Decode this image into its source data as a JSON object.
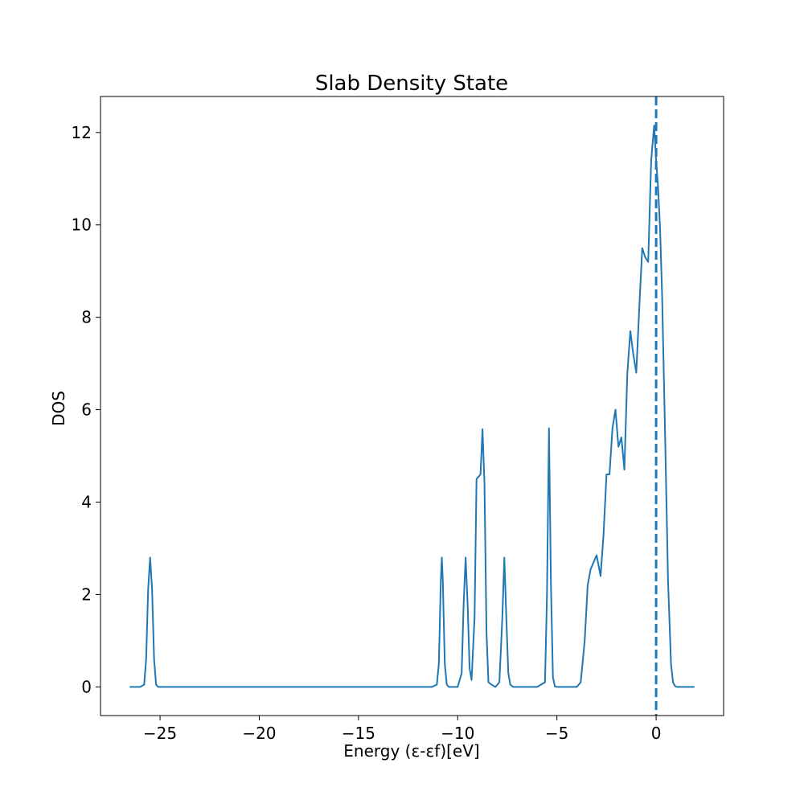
{
  "chart_data": {
    "type": "line",
    "title": "Slab Density State",
    "xlabel": "Energy (ε-εf)[eV]",
    "ylabel": "DOS",
    "xlim": [
      -28,
      3.4
    ],
    "ylim": [
      -0.62,
      12.78
    ],
    "xticks": [
      -25,
      -20,
      -15,
      -10,
      -5,
      0
    ],
    "xtick_labels": [
      "−25",
      "−20",
      "−15",
      "−10",
      "−5",
      "0"
    ],
    "yticks": [
      0,
      2,
      4,
      6,
      8,
      10,
      12
    ],
    "ytick_labels": [
      "0",
      "2",
      "4",
      "6",
      "8",
      "10",
      "12"
    ],
    "grid": false,
    "line_color": "#1f77b4",
    "fermi_level": 0,
    "series": [
      {
        "x": [
          -26.5,
          -26.0,
          -25.8,
          -25.7,
          -25.6,
          -25.5,
          -25.4,
          -25.3,
          -25.2,
          -25.1,
          -25.0,
          -24.5,
          -11.3,
          -11.05,
          -10.95,
          -10.85,
          -10.8,
          -10.75,
          -10.65,
          -10.55,
          -10.45,
          -10.3,
          -10.0,
          -9.8,
          -9.7,
          -9.6,
          -9.5,
          -9.4,
          -9.3,
          -9.15,
          -9.05,
          -8.85,
          -8.75,
          -8.65,
          -8.55,
          -8.45,
          -8.3,
          -8.1,
          -7.9,
          -7.75,
          -7.65,
          -7.55,
          -7.45,
          -7.35,
          -7.2,
          -6.95,
          -6.0,
          -5.6,
          -5.5,
          -5.4,
          -5.3,
          -5.2,
          -5.1,
          -5.0,
          -4.85,
          -4.5,
          -4.0,
          -3.8,
          -3.6,
          -3.45,
          -3.3,
          -3.15,
          -3.0,
          -2.8,
          -2.65,
          -2.5,
          -2.35,
          -2.2,
          -2.05,
          -1.9,
          -1.75,
          -1.6,
          -1.45,
          -1.3,
          -1.15,
          -1.0,
          -0.85,
          -0.7,
          -0.55,
          -0.4,
          -0.25,
          -0.1,
          0.0,
          0.1,
          0.2,
          0.3,
          0.45,
          0.6,
          0.75,
          0.85,
          0.95,
          1.05,
          1.15,
          1.25,
          1.35,
          1.5,
          1.9
        ],
        "y": [
          0,
          0,
          0.05,
          0.6,
          2.1,
          2.8,
          2.1,
          0.6,
          0.05,
          0,
          0,
          0,
          0,
          0.05,
          0.5,
          2.3,
          2.8,
          2.3,
          0.5,
          0.05,
          0,
          0,
          0,
          0.3,
          1.8,
          2.8,
          1.8,
          0.4,
          0.15,
          1.5,
          4.5,
          4.6,
          5.58,
          4.4,
          1.2,
          0.1,
          0.05,
          0,
          0.1,
          1.5,
          2.8,
          1.5,
          0.3,
          0.05,
          0,
          0,
          0,
          0.1,
          2.0,
          5.6,
          2.2,
          0.2,
          0.01,
          0,
          0,
          0,
          0,
          0.1,
          1.0,
          2.2,
          2.55,
          2.7,
          2.85,
          2.4,
          3.3,
          4.6,
          4.6,
          5.6,
          6.0,
          5.2,
          5.4,
          4.7,
          6.8,
          7.7,
          7.2,
          6.8,
          8.2,
          9.5,
          9.3,
          9.2,
          11.4,
          12.15,
          11.4,
          10.8,
          9.9,
          8.5,
          5.5,
          2.3,
          0.5,
          0.1,
          0.02,
          0,
          0,
          0,
          0,
          0,
          0
        ]
      }
    ]
  }
}
